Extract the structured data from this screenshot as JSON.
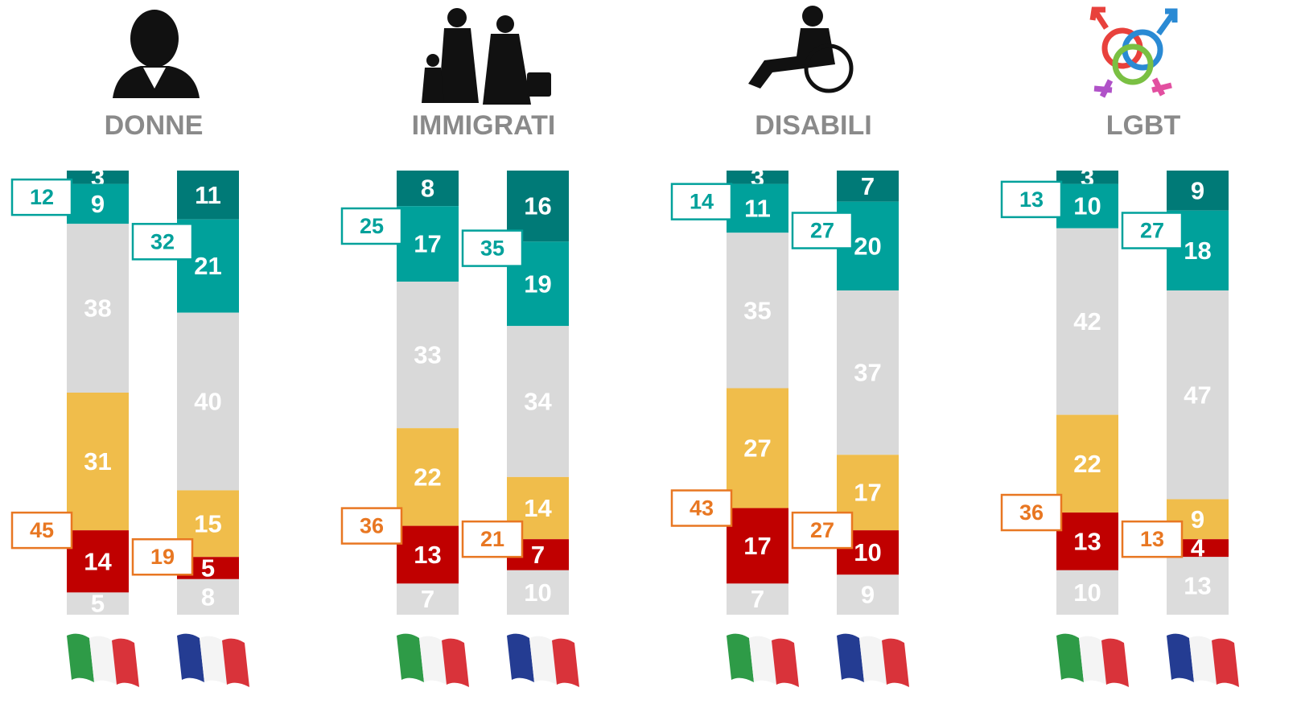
{
  "chart_data": [
    {
      "type": "stacked-bar",
      "title": "DONNE",
      "ylim": [
        0,
        100
      ],
      "series": [
        {
          "color": "#007a77",
          "values": [
            3,
            11
          ]
        },
        {
          "color": "#00a19b",
          "values": [
            9,
            21
          ]
        },
        {
          "color": "#d9d9d9",
          "values": [
            38,
            40
          ]
        },
        {
          "color": "#f0bd4b",
          "values": [
            31,
            15
          ]
        },
        {
          "color": "#c00000",
          "values": [
            14,
            5
          ]
        },
        {
          "color": "#dcdcdc",
          "values": [
            5,
            8
          ]
        }
      ],
      "totals": [
        {
          "color": "#00a19b",
          "values": [
            12,
            32
          ]
        },
        {
          "color": "#e87722",
          "values": [
            45,
            19
          ]
        }
      ]
    },
    {
      "type": "stacked-bar",
      "title": "IMMIGRATI",
      "ylim": [
        0,
        100
      ],
      "series": [
        {
          "color": "#007a77",
          "values": [
            8,
            16
          ]
        },
        {
          "color": "#00a19b",
          "values": [
            17,
            19
          ]
        },
        {
          "color": "#d9d9d9",
          "values": [
            33,
            34
          ]
        },
        {
          "color": "#f0bd4b",
          "values": [
            22,
            14
          ]
        },
        {
          "color": "#c00000",
          "values": [
            13,
            7
          ]
        },
        {
          "color": "#dcdcdc",
          "values": [
            7,
            10
          ]
        }
      ],
      "totals": [
        {
          "color": "#00a19b",
          "values": [
            25,
            35
          ]
        },
        {
          "color": "#e87722",
          "values": [
            36,
            21
          ]
        }
      ]
    },
    {
      "type": "stacked-bar",
      "title": "DISABILI",
      "ylim": [
        0,
        100
      ],
      "series": [
        {
          "color": "#007a77",
          "values": [
            3,
            7
          ]
        },
        {
          "color": "#00a19b",
          "values": [
            11,
            20
          ]
        },
        {
          "color": "#d9d9d9",
          "values": [
            35,
            37
          ]
        },
        {
          "color": "#f0bd4b",
          "values": [
            27,
            17
          ]
        },
        {
          "color": "#c00000",
          "values": [
            17,
            10
          ]
        },
        {
          "color": "#dcdcdc",
          "values": [
            7,
            9
          ]
        }
      ],
      "totals": [
        {
          "color": "#00a19b",
          "values": [
            14,
            27
          ]
        },
        {
          "color": "#e87722",
          "values": [
            43,
            27
          ]
        }
      ]
    },
    {
      "type": "stacked-bar",
      "title": "LGBT",
      "ylim": [
        0,
        100
      ],
      "series": [
        {
          "color": "#007a77",
          "values": [
            3,
            9
          ]
        },
        {
          "color": "#00a19b",
          "values": [
            10,
            18
          ]
        },
        {
          "color": "#d9d9d9",
          "values": [
            42,
            47
          ]
        },
        {
          "color": "#f0bd4b",
          "values": [
            22,
            9
          ]
        },
        {
          "color": "#c00000",
          "values": [
            13,
            4
          ]
        },
        {
          "color": "#dcdcdc",
          "values": [
            10,
            13
          ]
        }
      ],
      "totals": [
        {
          "color": "#00a19b",
          "values": [
            13,
            27
          ]
        },
        {
          "color": "#e87722",
          "values": [
            36,
            13
          ]
        }
      ]
    }
  ]
}
